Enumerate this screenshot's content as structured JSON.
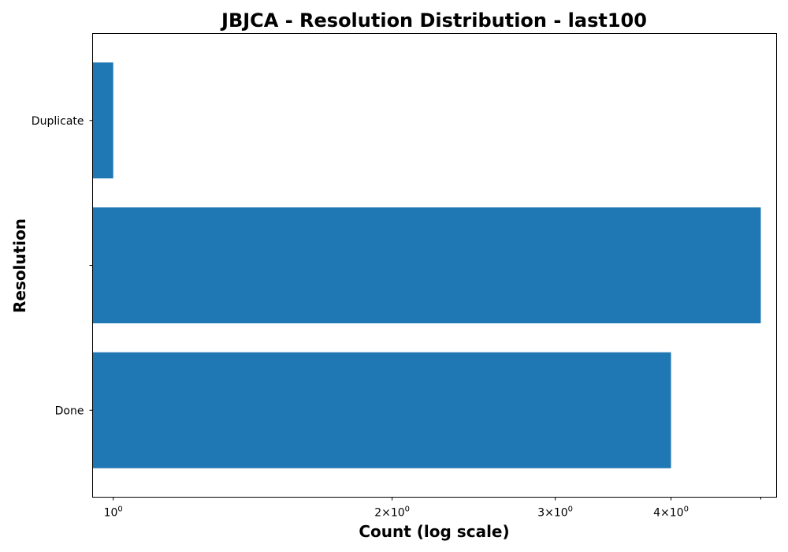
{
  "chart_data": {
    "type": "bar",
    "orientation": "horizontal",
    "title": "JBJCA - Resolution Distribution - last100",
    "xlabel": "Count (log scale)",
    "ylabel": "Resolution",
    "x_scale": "log",
    "xlim": [
      0.95,
      5.2
    ],
    "categories": [
      "Duplicate",
      "",
      "Done"
    ],
    "values": [
      1,
      5,
      4
    ],
    "color": "#1f77b4",
    "x_ticks": [
      {
        "value": 1,
        "base": "10",
        "exp": "0",
        "coef": ""
      },
      {
        "value": 2,
        "base": "10",
        "exp": "0",
        "coef": "2×"
      },
      {
        "value": 3,
        "base": "10",
        "exp": "0",
        "coef": "3×"
      },
      {
        "value": 4,
        "base": "10",
        "exp": "0",
        "coef": "4×"
      }
    ]
  }
}
